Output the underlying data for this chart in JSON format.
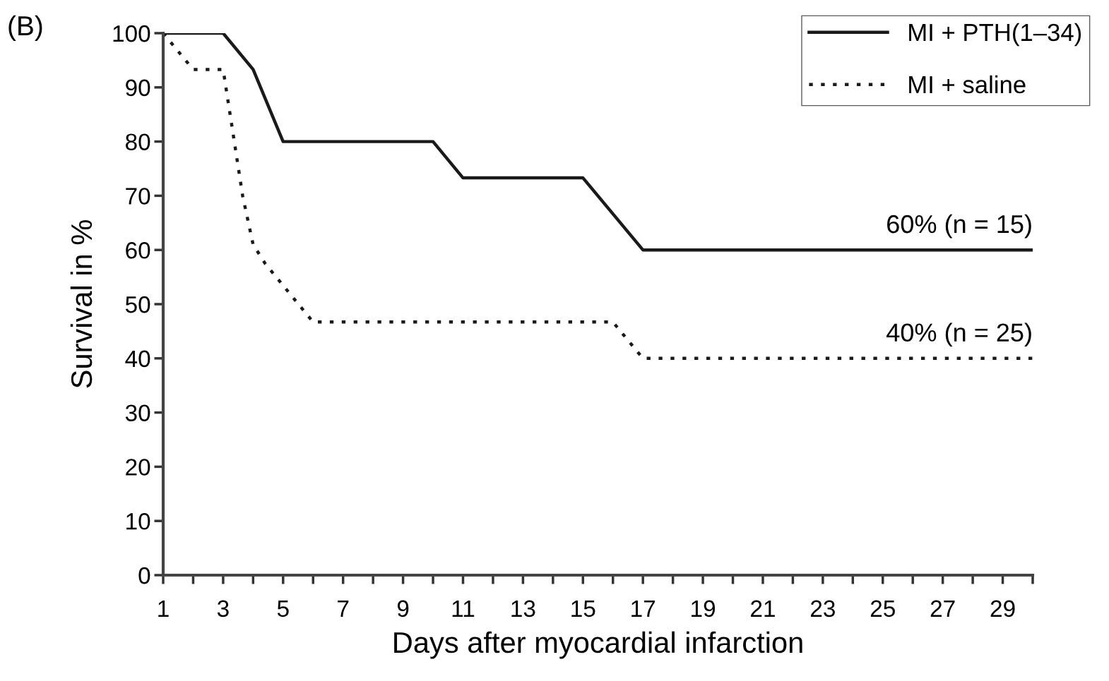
{
  "chart_data": {
    "type": "line",
    "xlabel": "Days after myocardial infarction",
    "ylabel": "Survival in %",
    "series": [
      {
        "name": "MI + PTH(1–34)",
        "color": "#1a1a1a",
        "line_style": "solid",
        "x": [
          1,
          3,
          4,
          5,
          10,
          11,
          15,
          17,
          30
        ],
        "values": [
          100,
          100,
          93.3,
          80,
          80,
          73.3,
          73.3,
          60,
          60
        ]
      },
      {
        "name": "MI + saline",
        "color": "#1a1a1a",
        "line_style": "dotted",
        "x": [
          1,
          2,
          3,
          3.4,
          3.65,
          4,
          4.4,
          6,
          16,
          17,
          30
        ],
        "values": [
          100,
          93.3,
          93.3,
          79,
          70,
          61,
          57.5,
          46.7,
          46.7,
          40,
          40
        ]
      }
    ],
    "xlim": [
      1,
      30
    ],
    "ylim": [
      0,
      100
    ],
    "xticks": [
      1,
      {
        "value": 2,
        "label": null
      },
      3,
      {
        "value": 4,
        "label": null
      },
      5,
      {
        "value": 6,
        "label": null
      },
      7,
      {
        "value": 8,
        "label": null
      },
      9,
      {
        "value": 10,
        "label": null
      },
      11,
      {
        "value": 12,
        "label": null
      },
      13,
      {
        "value": 14,
        "label": null
      },
      15,
      {
        "value": 16,
        "label": null
      },
      17,
      {
        "value": 18,
        "label": null
      },
      19,
      {
        "value": 20,
        "label": null
      },
      21,
      {
        "value": 22,
        "label": null
      },
      23,
      {
        "value": 24,
        "label": null
      },
      25,
      {
        "value": 26,
        "label": null
      },
      27,
      {
        "value": 28,
        "label": null
      },
      29,
      {
        "value": 30,
        "label": null
      }
    ],
    "yticks": [
      0,
      10,
      20,
      30,
      40,
      50,
      60,
      70,
      80,
      90,
      100
    ],
    "grid": false,
    "legend": "top right",
    "marker": "none",
    "annotations": [
      "(B)",
      {
        "text": "60% (n = 15)",
        "x": 30,
        "y": 60
      },
      {
        "text": "40% (n = 25)",
        "x": 30,
        "y": 40
      }
    ]
  }
}
